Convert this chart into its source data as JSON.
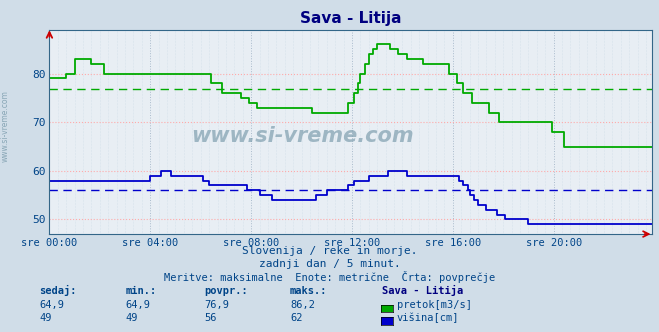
{
  "title": "Sava - Litija",
  "fig_bg": "#d0dde8",
  "plot_bg": "#e8eef4",
  "green_color": "#00aa00",
  "blue_color": "#0000cc",
  "avg_green": 76.9,
  "avg_blue": 56.0,
  "ylim": [
    47,
    89
  ],
  "yticks": [
    50,
    60,
    70,
    80
  ],
  "xtick_labels": [
    "sre 00:00",
    "sre 04:00",
    "sre 08:00",
    "sre 12:00",
    "sre 16:00",
    "sre 20:00"
  ],
  "xtick_positions": [
    0,
    48,
    96,
    144,
    192,
    240
  ],
  "n_points": 288,
  "subtitle1": "Slovenija / reke in morje.",
  "subtitle2": "zadnji dan / 5 minut.",
  "subtitle3": "Meritve: maksimalne  Enote: metrične  Črta: povprečje",
  "legend_title": "Sava - Litija",
  "label_sedaj": "sedaj:",
  "label_min": "min.:",
  "label_povpr": "povpr.:",
  "label_maks": "maks.:",
  "val_sedaj_green": "64,9",
  "val_min_green": "64,9",
  "val_povpr_green": "76,9",
  "val_maks_green": "86,2",
  "val_sedaj_blue": "49",
  "val_min_blue": "49",
  "val_povpr_blue": "56",
  "val_maks_blue": "62",
  "legend_green": "pretok[m3/s]",
  "legend_blue": "višina[cm]",
  "watermark": "www.si-vreme.com",
  "green_data": [
    79,
    79,
    79,
    79,
    79,
    79,
    79,
    79,
    80,
    80,
    80,
    80,
    83,
    83,
    83,
    83,
    83,
    83,
    83,
    83,
    82,
    82,
    82,
    82,
    82,
    82,
    80,
    80,
    80,
    80,
    80,
    80,
    80,
    80,
    80,
    80,
    80,
    80,
    80,
    80,
    80,
    80,
    80,
    80,
    80,
    80,
    80,
    80,
    80,
    80,
    80,
    80,
    80,
    80,
    80,
    80,
    80,
    80,
    80,
    80,
    80,
    80,
    80,
    80,
    80,
    80,
    80,
    80,
    80,
    80,
    80,
    80,
    80,
    80,
    80,
    80,
    80,
    78,
    78,
    78,
    78,
    78,
    76,
    76,
    76,
    76,
    76,
    76,
    76,
    76,
    76,
    75,
    75,
    75,
    75,
    74,
    74,
    74,
    74,
    73,
    73,
    73,
    73,
    73,
    73,
    73,
    73,
    73,
    73,
    73,
    73,
    73,
    73,
    73,
    73,
    73,
    73,
    73,
    73,
    73,
    73,
    73,
    73,
    73,
    73,
    72,
    72,
    72,
    72,
    72,
    72,
    72,
    72,
    72,
    72,
    72,
    72,
    72,
    72,
    72,
    72,
    72,
    74,
    74,
    74,
    76,
    76,
    78,
    80,
    80,
    82,
    82,
    84,
    84,
    85,
    85,
    86,
    86,
    86,
    86,
    86,
    86,
    85,
    85,
    85,
    85,
    84,
    84,
    84,
    84,
    83,
    83,
    83,
    83,
    83,
    83,
    83,
    83,
    82,
    82,
    82,
    82,
    82,
    82,
    82,
    82,
    82,
    82,
    82,
    82,
    80,
    80,
    80,
    80,
    78,
    78,
    78,
    76,
    76,
    76,
    76,
    74,
    74,
    74,
    74,
    74,
    74,
    74,
    74,
    72,
    72,
    72,
    72,
    72,
    70,
    70,
    70,
    70,
    70,
    70,
    70,
    70,
    70,
    70,
    70,
    70,
    70,
    70,
    70,
    70,
    70,
    70,
    70,
    70,
    70,
    70,
    70,
    70,
    70,
    68,
    68,
    68,
    68,
    68,
    68,
    65,
    65,
    65,
    65,
    65,
    65,
    65,
    65,
    65,
    65,
    65,
    65,
    65,
    65,
    65,
    65,
    65,
    65,
    65,
    65,
    65,
    65,
    65,
    65,
    65,
    65,
    65,
    65,
    65,
    65,
    65,
    65,
    65,
    65,
    65,
    65,
    65,
    65,
    65,
    65,
    65,
    65,
    65
  ],
  "blue_data": [
    58,
    58,
    58,
    58,
    58,
    58,
    58,
    58,
    58,
    58,
    58,
    58,
    58,
    58,
    58,
    58,
    58,
    58,
    58,
    58,
    58,
    58,
    58,
    58,
    58,
    58,
    58,
    58,
    58,
    58,
    58,
    58,
    58,
    58,
    58,
    58,
    58,
    58,
    58,
    58,
    58,
    58,
    58,
    58,
    58,
    58,
    58,
    58,
    59,
    59,
    59,
    59,
    59,
    60,
    60,
    60,
    60,
    60,
    59,
    59,
    59,
    59,
    59,
    59,
    59,
    59,
    59,
    59,
    59,
    59,
    59,
    59,
    59,
    58,
    58,
    58,
    57,
    57,
    57,
    57,
    57,
    57,
    57,
    57,
    57,
    57,
    57,
    57,
    57,
    57,
    57,
    57,
    57,
    57,
    56,
    56,
    56,
    56,
    56,
    56,
    55,
    55,
    55,
    55,
    55,
    55,
    54,
    54,
    54,
    54,
    54,
    54,
    54,
    54,
    54,
    54,
    54,
    54,
    54,
    54,
    54,
    54,
    54,
    54,
    54,
    54,
    54,
    55,
    55,
    55,
    55,
    55,
    56,
    56,
    56,
    56,
    56,
    56,
    56,
    56,
    56,
    56,
    57,
    57,
    57,
    58,
    58,
    58,
    58,
    58,
    58,
    58,
    59,
    59,
    59,
    59,
    59,
    59,
    59,
    59,
    59,
    60,
    60,
    60,
    60,
    60,
    60,
    60,
    60,
    60,
    59,
    59,
    59,
    59,
    59,
    59,
    59,
    59,
    59,
    59,
    59,
    59,
    59,
    59,
    59,
    59,
    59,
    59,
    59,
    59,
    59,
    59,
    59,
    59,
    59,
    58,
    58,
    57,
    57,
    56,
    55,
    55,
    54,
    54,
    53,
    53,
    53,
    53,
    52,
    52,
    52,
    52,
    52,
    51,
    51,
    51,
    51,
    50,
    50,
    50,
    50,
    50,
    50,
    50,
    50,
    50,
    50,
    50,
    49,
    49,
    49,
    49,
    49,
    49,
    49,
    49,
    49,
    49,
    49,
    49,
    49,
    49,
    49,
    49,
    49,
    49,
    49,
    49,
    49,
    49,
    49,
    49,
    49,
    49,
    49,
    49,
    49,
    49,
    49,
    49,
    49,
    49,
    49,
    49,
    49,
    49,
    49,
    49,
    49,
    49,
    49,
    49,
    49,
    49,
    49,
    49,
    49,
    49,
    49,
    49,
    49,
    49,
    49,
    49,
    49,
    49,
    49,
    49
  ]
}
